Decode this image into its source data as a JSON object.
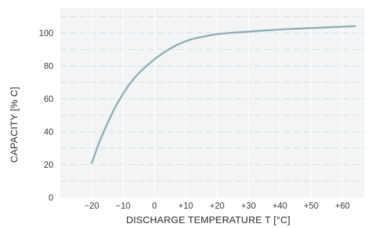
{
  "chart_data": {
    "type": "line",
    "title": "",
    "xlabel": "DISCHARGE TEMPERATURE T [°C]",
    "ylabel": "CAPACITY [% C]",
    "xlim": [
      -30,
      67
    ],
    "ylim": [
      0,
      115
    ],
    "x_ticks": [
      -20,
      -10,
      0,
      10,
      20,
      30,
      40,
      50,
      60
    ],
    "x_tick_labels": [
      "−20",
      "−10",
      "0",
      "+10",
      "+20",
      "+30",
      "+40",
      "+50",
      "+60"
    ],
    "y_ticks": [
      0,
      20,
      40,
      60,
      80,
      100
    ],
    "y_tick_labels": [
      "0",
      "20",
      "40",
      "60",
      "80",
      "100"
    ],
    "grid": true,
    "colors": {
      "line": "#8fadb6",
      "plot_background": "#f2f4f5",
      "grid": "#d7dcdf"
    },
    "series": [
      {
        "x": [
          -20,
          -17.5,
          -15,
          -12.5,
          -10,
          -7.5,
          -5,
          -2.5,
          0,
          2.5,
          5,
          7.5,
          10,
          12.5,
          15,
          17.5,
          20,
          25,
          30,
          35,
          40,
          45,
          50,
          55,
          60,
          64
        ],
        "values": [
          21,
          34,
          45,
          55,
          63,
          70,
          75.5,
          80,
          84,
          87.5,
          90.5,
          93,
          95,
          96.5,
          97.5,
          98.5,
          99.3,
          100.2,
          100.8,
          101.5,
          102.1,
          102.6,
          103,
          103.4,
          103.8,
          104.2
        ]
      }
    ]
  }
}
